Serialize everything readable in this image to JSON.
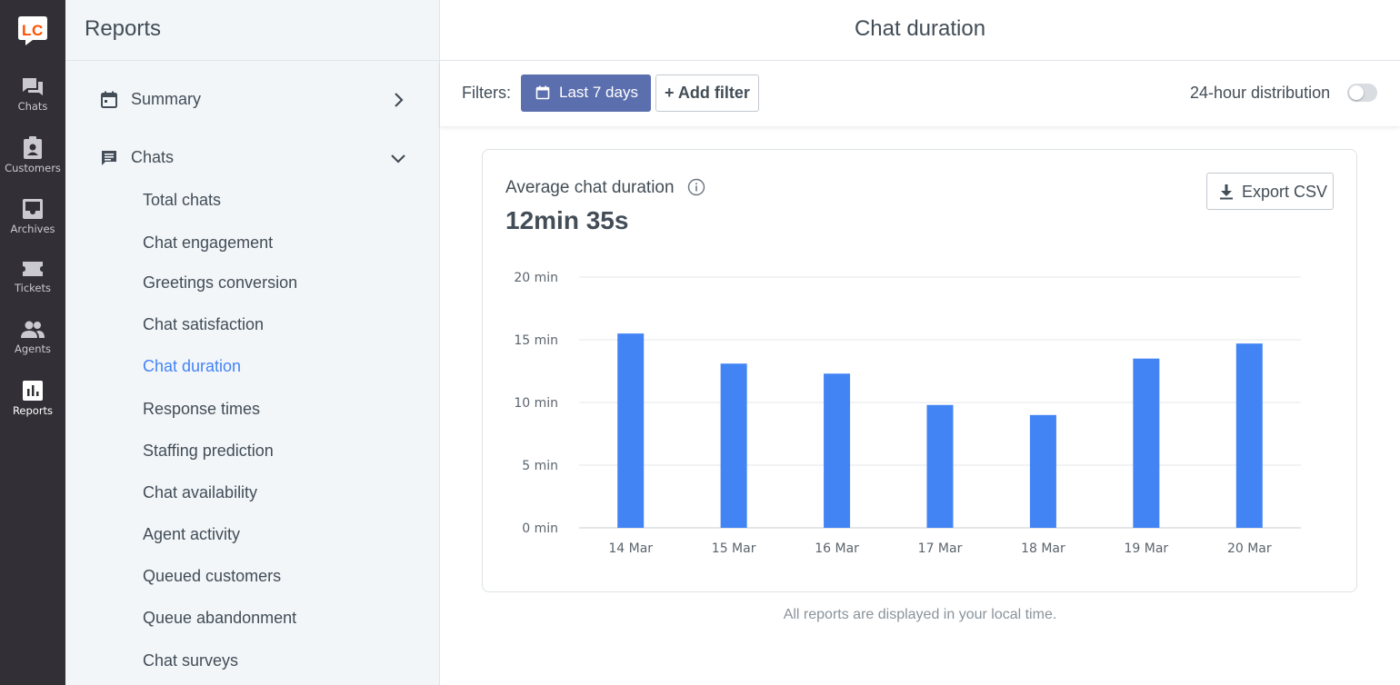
{
  "app": {
    "logo_text": "LC"
  },
  "rail": {
    "items": [
      {
        "label": "Chats",
        "icon": "chat-bubbles-icon"
      },
      {
        "label": "Customers",
        "icon": "customer-badge-icon"
      },
      {
        "label": "Archives",
        "icon": "inbox-archive-icon"
      },
      {
        "label": "Tickets",
        "icon": "ticket-icon"
      },
      {
        "label": "Agents",
        "icon": "agents-icon"
      },
      {
        "label": "Reports",
        "icon": "bar-chart-icon",
        "active": true
      }
    ]
  },
  "sidebar": {
    "title": "Reports",
    "groups": [
      {
        "label": "Summary",
        "icon": "calendar-icon",
        "expanded": false
      },
      {
        "label": "Chats",
        "icon": "chat-message-icon",
        "expanded": true
      }
    ],
    "chat_items": [
      "Total chats",
      "Chat engagement",
      "Greetings conversion",
      "Chat satisfaction",
      "Chat duration",
      "Response times",
      "Staffing prediction",
      "Chat availability",
      "Agent activity",
      "Queued customers",
      "Queue abandonment",
      "Chat surveys"
    ],
    "active_item": "Chat duration"
  },
  "main": {
    "title": "Chat duration",
    "filters_label": "Filters:",
    "date_filter": "Last 7 days",
    "add_filter": "+ Add filter",
    "distribution_label": "24-hour distribution",
    "distribution_enabled": false,
    "card": {
      "title": "Average chat duration",
      "value": "12min 35s",
      "export_label": "Export CSV"
    },
    "footnote": "All reports are displayed in your local time."
  },
  "colors": {
    "rail_bg": "#323036",
    "sidebar_bg": "#f3f6f9",
    "accent": "#4384f5",
    "date_button": "#5b6eae",
    "bar": "#4384f5"
  },
  "chart_data": {
    "type": "bar",
    "categories": [
      "14 Mar",
      "15 Mar",
      "16 Mar",
      "17 Mar",
      "18 Mar",
      "19 Mar",
      "20 Mar"
    ],
    "values": [
      15.5,
      13.1,
      12.3,
      9.8,
      9.0,
      13.5,
      14.7
    ],
    "y_unit": "min",
    "yticks": [
      "0 min",
      "5 min",
      "10 min",
      "15 min",
      "20 min"
    ],
    "ylim": [
      0,
      20
    ],
    "grid": true,
    "title": "",
    "xlabel": "",
    "ylabel": ""
  }
}
